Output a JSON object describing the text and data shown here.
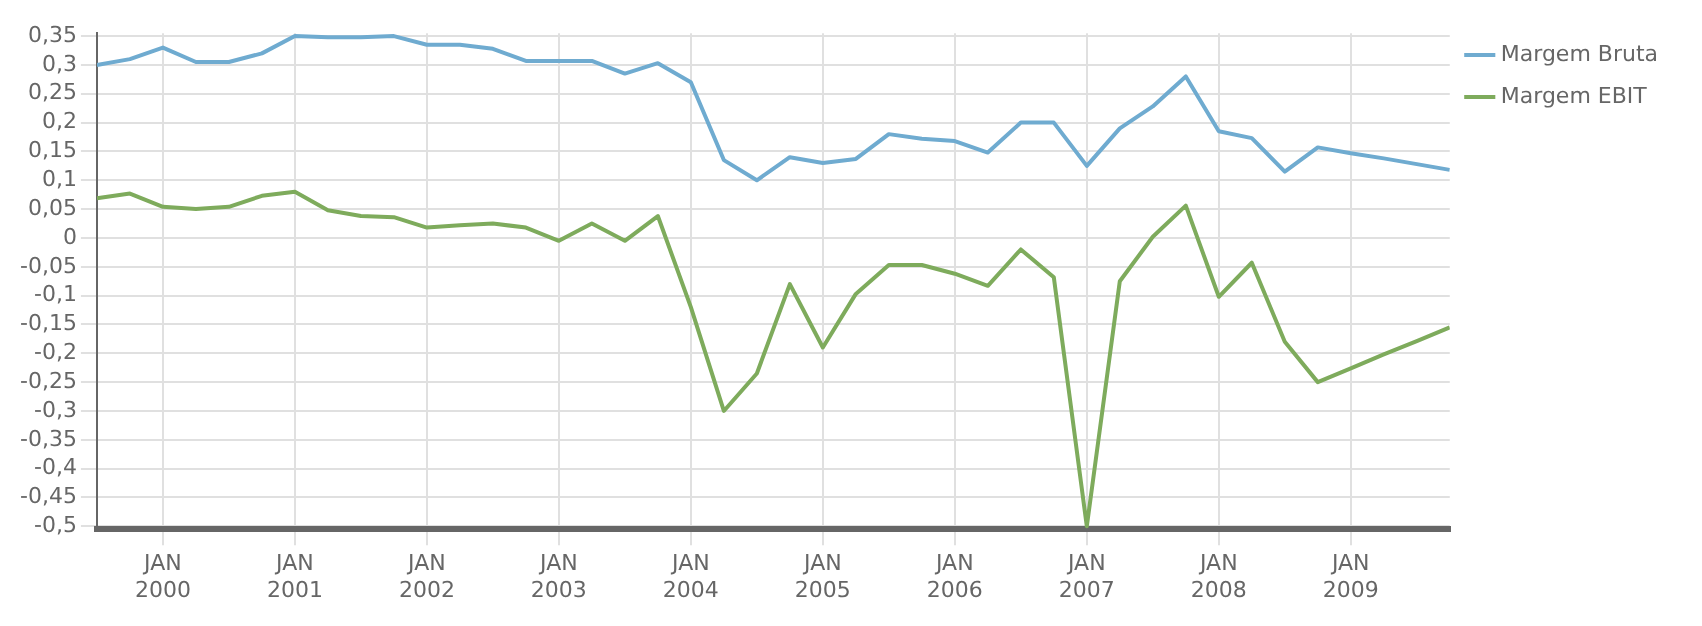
{
  "chart_data": {
    "type": "line",
    "x": [
      "1999-07",
      "1999-10",
      "2000-01",
      "2000-04",
      "2000-07",
      "2000-10",
      "2001-01",
      "2001-04",
      "2001-07",
      "2001-10",
      "2002-01",
      "2002-04",
      "2002-07",
      "2002-10",
      "2003-01",
      "2003-04",
      "2003-07",
      "2003-10",
      "2004-01",
      "2004-04",
      "2004-07",
      "2004-10",
      "2005-01",
      "2005-04",
      "2005-07",
      "2005-10",
      "2006-01",
      "2006-04",
      "2006-07",
      "2006-10",
      "2007-01",
      "2007-04",
      "2007-07",
      "2007-10",
      "2008-01",
      "2008-04",
      "2008-07",
      "2008-10",
      "2009-01",
      "2009-04",
      "2009-07",
      "2009-10"
    ],
    "series": [
      {
        "name": "Margem Bruta",
        "color": "#6fabd0",
        "values": [
          0.3,
          0.31,
          0.33,
          0.305,
          0.305,
          0.32,
          0.35,
          0.348,
          0.348,
          0.35,
          0.335,
          0.335,
          0.328,
          0.307,
          0.307,
          0.307,
          0.285,
          0.303,
          0.27,
          0.135,
          0.1,
          0.14,
          0.13,
          0.137,
          0.18,
          0.172,
          0.168,
          0.148,
          0.2,
          0.2,
          0.125,
          0.19,
          0.228,
          0.28,
          0.185,
          0.173,
          0.115,
          0.157,
          0.147,
          0.138,
          0.128,
          0.118
        ]
      },
      {
        "name": "Margem EBIT",
        "color": "#7eab5c",
        "values": [
          0.069,
          0.077,
          0.054,
          0.05,
          0.054,
          0.073,
          0.08,
          0.048,
          0.038,
          0.036,
          0.018,
          0.022,
          0.025,
          0.018,
          -0.005,
          0.025,
          -0.005,
          0.038,
          -0.12,
          -0.3,
          -0.235,
          -0.08,
          -0.19,
          -0.097,
          -0.047,
          -0.047,
          -0.062,
          -0.083,
          -0.02,
          -0.068,
          -0.5,
          -0.075,
          0.002,
          0.056,
          -0.102,
          -0.043,
          -0.18,
          -0.25,
          -0.226,
          -0.202,
          -0.179,
          -0.155
        ]
      }
    ],
    "xlim": [
      "1999-07",
      "2009-10"
    ],
    "xticks": [
      {
        "value": "2000-01",
        "label": "JAN\n2000"
      },
      {
        "value": "2001-01",
        "label": "JAN\n2001"
      },
      {
        "value": "2002-01",
        "label": "JAN\n2002"
      },
      {
        "value": "2003-01",
        "label": "JAN\n2003"
      },
      {
        "value": "2004-01",
        "label": "JAN\n2004"
      },
      {
        "value": "2005-01",
        "label": "JAN\n2005"
      },
      {
        "value": "2006-01",
        "label": "JAN\n2006"
      },
      {
        "value": "2007-01",
        "label": "JAN\n2007"
      },
      {
        "value": "2008-01",
        "label": "JAN\n2008"
      },
      {
        "value": "2009-01",
        "label": "JAN\n2009"
      }
    ],
    "ylim": [
      -0.505,
      0.355
    ],
    "yticks": [
      {
        "value": -0.5,
        "label": "-0,5"
      },
      {
        "value": -0.45,
        "label": "-0,45"
      },
      {
        "value": -0.4,
        "label": "-0,4"
      },
      {
        "value": -0.35,
        "label": "-0,35"
      },
      {
        "value": -0.3,
        "label": "-0,3"
      },
      {
        "value": -0.25,
        "label": "-0,25"
      },
      {
        "value": -0.2,
        "label": "-0,2"
      },
      {
        "value": -0.15,
        "label": "-0,15"
      },
      {
        "value": -0.1,
        "label": "-0,1"
      },
      {
        "value": -0.05,
        "label": "-0,05"
      },
      {
        "value": 0,
        "label": "0"
      },
      {
        "value": 0.05,
        "label": "0,05"
      },
      {
        "value": 0.1,
        "label": "0,1"
      },
      {
        "value": 0.15,
        "label": "0,15"
      },
      {
        "value": 0.2,
        "label": "0,2"
      },
      {
        "value": 0.25,
        "label": "0,25"
      },
      {
        "value": 0.3,
        "label": "0,3"
      },
      {
        "value": 0.35,
        "label": "0,35"
      }
    ],
    "grid": true,
    "legend": "top right",
    "marker": "none",
    "line_style": "solid"
  }
}
